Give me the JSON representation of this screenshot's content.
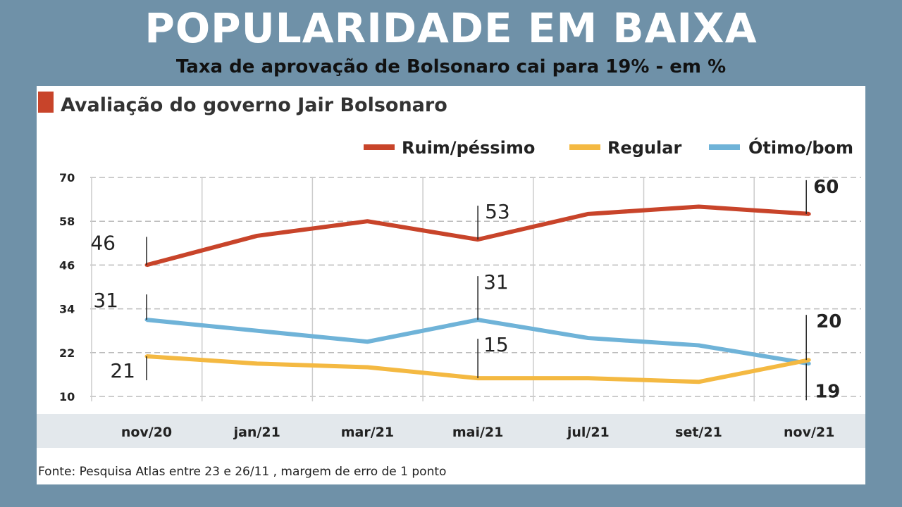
{
  "header": {
    "title": "POPULARIDADE EM BAIXA",
    "subtitle": "Taxa de aprovação de Bolsonaro cai para 19% - em %"
  },
  "chart_data": {
    "type": "line",
    "title": "Avaliação do governo Jair Bolsonaro",
    "source": "Fonte: Pesquisa Atlas entre 23 e 26/11 , margem de erro de 1 ponto",
    "categories": [
      "nov/20",
      "jan/21",
      "mar/21",
      "mai/21",
      "jul/21",
      "set/21",
      "nov/21"
    ],
    "yticks": [
      70,
      58,
      46,
      34,
      22,
      10
    ],
    "ylim": [
      10,
      70
    ],
    "grid": true,
    "legend_position": "top-right",
    "series": [
      {
        "name": "Ruim/péssimo",
        "color": "#c8442a",
        "values": [
          46,
          54,
          58,
          53,
          60,
          62,
          60
        ]
      },
      {
        "name": "Regular",
        "color": "#f4b942",
        "values": [
          21,
          19,
          18,
          15,
          15,
          14,
          20
        ]
      },
      {
        "name": "Ótimo/bom",
        "color": "#6fb3d8",
        "values": [
          31,
          28,
          25,
          31,
          26,
          24,
          19
        ]
      }
    ],
    "annotations": [
      {
        "series": 0,
        "index": 0,
        "text": "46"
      },
      {
        "series": 0,
        "index": 3,
        "text": "53"
      },
      {
        "series": 0,
        "index": 6,
        "text": "60"
      },
      {
        "series": 2,
        "index": 0,
        "text": "31"
      },
      {
        "series": 2,
        "index": 3,
        "text": "31"
      },
      {
        "series": 1,
        "index": 0,
        "text": "21"
      },
      {
        "series": 1,
        "index": 3,
        "text": "15"
      },
      {
        "series": 1,
        "index": 6,
        "text": "20"
      },
      {
        "series": 2,
        "index": 6,
        "text": "19"
      }
    ]
  }
}
